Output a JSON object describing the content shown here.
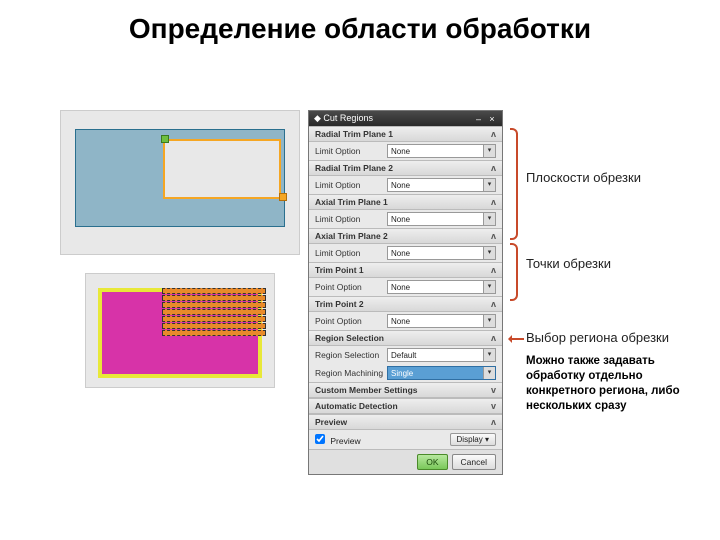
{
  "title": "Определение области обработки",
  "diagram1": {
    "bg": "#e8e8e8",
    "blue": "#8fb5c7",
    "blue_border": "#2a6f8e",
    "cut_border": "#f5a623",
    "handle_green": "#6fbf3f",
    "handle_orange": "#f5a623"
  },
  "diagram2": {
    "bg": "#e8e8e8",
    "yellow": "#e8e838",
    "pink": "#d733a8",
    "stripe": "#e88a2a",
    "stripe_count": 7
  },
  "dialog": {
    "title": "Cut Regions",
    "sections": [
      {
        "header": "Radial Trim Plane 1",
        "rows": [
          {
            "label": "Limit Option",
            "value": "None"
          }
        ]
      },
      {
        "header": "Radial Trim Plane 2",
        "rows": [
          {
            "label": "Limit Option",
            "value": "None"
          }
        ]
      },
      {
        "header": "Axial Trim Plane 1",
        "rows": [
          {
            "label": "Limit Option",
            "value": "None"
          }
        ]
      },
      {
        "header": "Axial Trim Plane 2",
        "rows": [
          {
            "label": "Limit Option",
            "value": "None"
          }
        ]
      },
      {
        "header": "Trim Point 1",
        "rows": [
          {
            "label": "Point Option",
            "value": "None"
          }
        ]
      },
      {
        "header": "Trim Point 2",
        "rows": [
          {
            "label": "Point Option",
            "value": "None"
          }
        ]
      },
      {
        "header": "Region Selection",
        "rows": [
          {
            "label": "Region Selection",
            "value": "Default"
          },
          {
            "label": "Region Machining",
            "value": "Single",
            "highlight": true
          }
        ]
      },
      {
        "header": "Custom Member Settings",
        "collapsed": true
      },
      {
        "header": "Automatic Detection",
        "collapsed": true
      }
    ],
    "preview": {
      "label": "Preview",
      "checked": true,
      "display": "Display"
    },
    "buttons": {
      "ok": "OK",
      "cancel": "Cancel"
    }
  },
  "annotations": {
    "planes": "Плоскости обрезки",
    "points": "Точки обрезки",
    "region": "Выбор региона обрезки",
    "note": "Можно также задавать обработку отдельно конкретного региона, либо нескольких сразу"
  },
  "colors": {
    "brace": "#c84a2a",
    "dialog_bg": "#dcdcdc",
    "ok_btn": "#7ac85a"
  }
}
